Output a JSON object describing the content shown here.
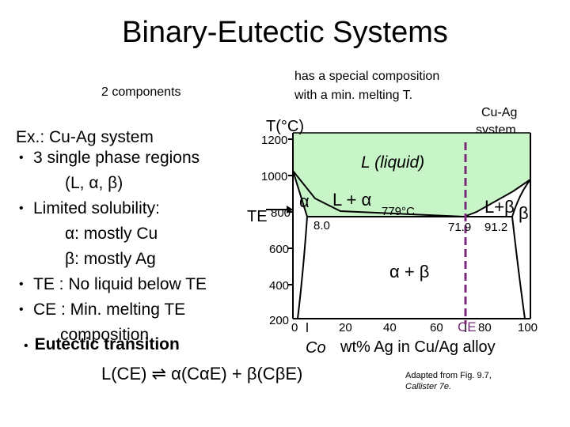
{
  "title": "Binary-Eutectic Systems",
  "annotations": {
    "components": "2 components",
    "special_line1": "has a special composition",
    "special_line2": "with a min. melting T.",
    "system_line1": "Cu-Ag",
    "system_line2": "system"
  },
  "bullets": {
    "example": "Ex.: Cu-Ag system",
    "regions": "3 single phase regions",
    "regions_list": "(L, α, β)",
    "solubility": "Limited solubility:",
    "alpha": "α: mostly Cu",
    "beta": "β: mostly Ag",
    "te_text": "TE : No liquid below TE",
    "ce_text": "CE : Min. melting TE",
    "composition": "composition",
    "eutectic": "Eutectic transition",
    "reaction": "L(CE) ⇌ α(CαE) + β(CβE)"
  },
  "diagram": {
    "y_axis_label": "T(°C)",
    "te_label": "TE",
    "liquid_label": "L (liquid)",
    "alpha_label": "α",
    "l_alpha_label": "L + α",
    "l_beta_label": "L+β",
    "beta_label": "β",
    "two_phase_label": "α + β",
    "eutectic_temp": "779°C",
    "comp_alpha": "8.0",
    "comp_e": "71.9",
    "comp_beta": "91.2",
    "ce_label": "CE",
    "co_label": "Co",
    "x_axis_label": "wt% Ag in Cu/Ag alloy",
    "y_ticks": [
      "1200",
      "1000",
      "800",
      "600",
      "400",
      "200"
    ],
    "x_ticks": [
      "0",
      "20",
      "40",
      "60",
      "80",
      "100"
    ]
  },
  "credit": {
    "line1": "Adapted from Fig. 9.7,",
    "line2": "Callister 7e."
  },
  "colors": {
    "liquid_fill": "#c8f5c8",
    "two_phase_fill": "#ffffff",
    "dashed_line": "#7a2a7a"
  }
}
